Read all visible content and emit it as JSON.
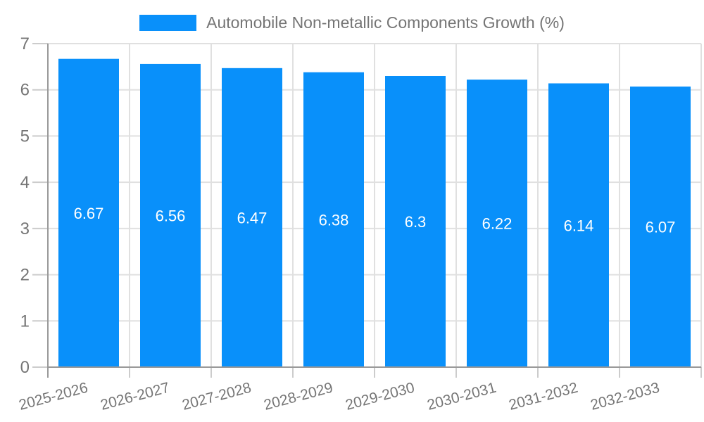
{
  "legend": {
    "label": "Automobile Non-metallic Components Growth (%)"
  },
  "chart_data": {
    "type": "bar",
    "title": "Automobile Non-metallic Components Growth (%)",
    "categories": [
      "2025-2026",
      "2026-2027",
      "2027-2028",
      "2028-2029",
      "2029-2030",
      "2030-2031",
      "2031-2032",
      "2032-2033"
    ],
    "values": [
      6.67,
      6.56,
      6.47,
      6.38,
      6.3,
      6.22,
      6.14,
      6.07
    ],
    "value_labels": [
      "6.67",
      "6.56",
      "6.47",
      "6.38",
      "6.3",
      "6.22",
      "6.14",
      "6.07"
    ],
    "xlabel": "",
    "ylabel": "",
    "ylim": [
      0,
      7
    ],
    "yticks": [
      0,
      1,
      2,
      3,
      4,
      5,
      6,
      7
    ],
    "grid": true,
    "legend_position": "top",
    "colors": {
      "bar": "#0990fa",
      "grid": "#e0e0e0",
      "axis": "#999999",
      "tick": "#cccccc",
      "tick_text": "#757575",
      "value_label": "#ffffff"
    }
  }
}
